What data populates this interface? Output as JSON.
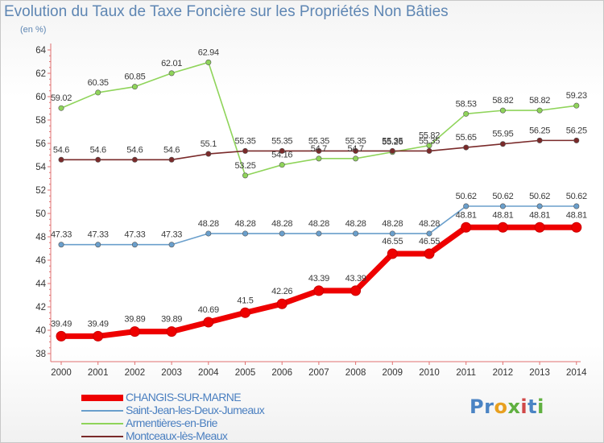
{
  "title": "Evolution du Taux de Taxe Foncière sur les Propriétés Non Bâties",
  "subtitle": "(en %)",
  "logo": "Proxiti",
  "chart_data": {
    "type": "line",
    "title": "Evolution du Taux de Taxe Foncière sur les Propriétés Non Bâties",
    "subtitle": "(en %)",
    "ylim": [
      38,
      64
    ],
    "yticks": [
      38,
      40,
      42,
      44,
      46,
      48,
      50,
      52,
      54,
      56,
      58,
      60,
      62,
      64
    ],
    "categories": [
      "2000",
      "2001",
      "2002",
      "2003",
      "2004",
      "2005",
      "2006",
      "2007",
      "2008",
      "2009",
      "2010",
      "2011",
      "2012",
      "2013",
      "2014"
    ],
    "grid": false,
    "legend_position": "bottom-left",
    "series": [
      {
        "name": "CHANGIS-SUR-MARNE",
        "color": "#ee0000",
        "values": [
          39.49,
          39.49,
          39.89,
          39.89,
          40.69,
          41.5,
          42.26,
          43.39,
          43.39,
          46.55,
          46.55,
          48.81,
          48.81,
          48.81,
          48.81
        ],
        "labels": [
          "39.49",
          "39.49",
          "39.89",
          "39.89",
          "40.69",
          "41.5",
          "42.26",
          "43.39",
          "43.39",
          "46.55",
          "46.55",
          "48.81",
          "48.81",
          "48.81",
          "48.81"
        ]
      },
      {
        "name": "Saint-Jean-les-Deux-Jumeaux",
        "color": "#6a9fcc",
        "values": [
          47.33,
          47.33,
          47.33,
          47.33,
          48.28,
          48.28,
          48.28,
          48.28,
          48.28,
          48.28,
          48.28,
          50.62,
          50.62,
          50.62,
          50.62
        ],
        "labels": [
          "47.33",
          "47.33",
          "47.33",
          "47.33",
          "48.28",
          "48.28",
          "48.28",
          "48.28",
          "48.28",
          "48.28",
          "48.28",
          "50.62",
          "50.62",
          "50.62",
          "50.62"
        ]
      },
      {
        "name": "Armentières-en-Brie",
        "color": "#8fd45a",
        "values": [
          59.02,
          60.35,
          60.85,
          62.01,
          62.94,
          53.25,
          54.16,
          54.7,
          54.7,
          55.26,
          55.82,
          58.53,
          58.82,
          58.82,
          59.23
        ],
        "labels": [
          "59.02",
          "60.35",
          "60.85",
          "62.01",
          "62.94",
          "53.25",
          "54.16",
          "54.7",
          "54.7",
          "55.26",
          "55.82",
          "58.53",
          "58.82",
          "58.82",
          "59.23"
        ]
      },
      {
        "name": "Montceaux-lès-Meaux",
        "color": "#7a2a2a",
        "values": [
          54.6,
          54.6,
          54.6,
          54.6,
          55.1,
          55.35,
          55.35,
          55.35,
          55.35,
          55.35,
          55.35,
          55.65,
          55.95,
          56.25,
          56.25
        ],
        "labels": [
          "54.6",
          "54.6",
          "54.6",
          "54.6",
          "55.1",
          "55.35",
          "55.35",
          "55.35",
          "55.35",
          "55.35",
          "55.35",
          "55.65",
          "55.95",
          "56.25",
          "56.25"
        ]
      }
    ]
  }
}
